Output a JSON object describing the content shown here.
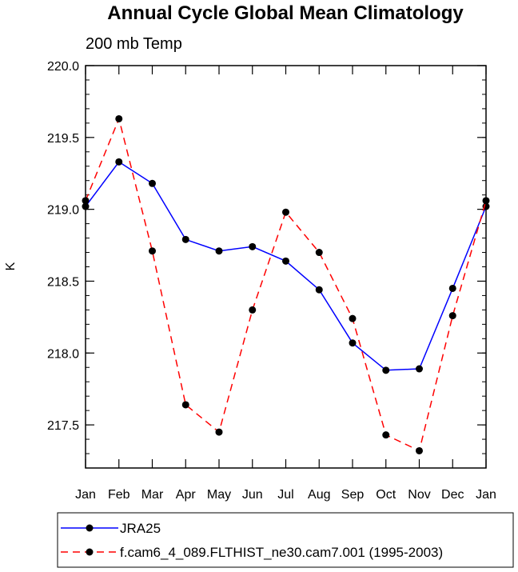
{
  "chart_data": {
    "type": "line",
    "title": "Annual Cycle Global Mean Climatology",
    "subtitle": "200 mb Temp",
    "xlabel": "",
    "ylabel": "K",
    "categories": [
      "Jan",
      "Feb",
      "Mar",
      "Apr",
      "May",
      "Jun",
      "Jul",
      "Aug",
      "Sep",
      "Oct",
      "Nov",
      "Dec",
      "Jan"
    ],
    "ylim": [
      217.2,
      220.0
    ],
    "yticks": [
      "217.5",
      "218.0",
      "218.5",
      "219.0",
      "219.5",
      "220.0"
    ],
    "grid": false,
    "legend_position": "bottom",
    "series": [
      {
        "name": "JRA25",
        "color": "#0000ff",
        "style": "solid",
        "values": [
          219.02,
          219.33,
          219.18,
          218.79,
          218.71,
          218.74,
          218.64,
          218.44,
          218.07,
          217.88,
          217.89,
          218.45,
          219.02
        ]
      },
      {
        "name": "f.cam6_4_089.FLTHIST_ne30.cam7.001 (1995-2003)",
        "color": "#ff0000",
        "style": "dashed",
        "values": [
          219.06,
          219.63,
          218.71,
          217.64,
          217.45,
          218.3,
          218.98,
          218.7,
          218.24,
          217.43,
          217.32,
          218.26,
          219.06
        ]
      }
    ]
  }
}
